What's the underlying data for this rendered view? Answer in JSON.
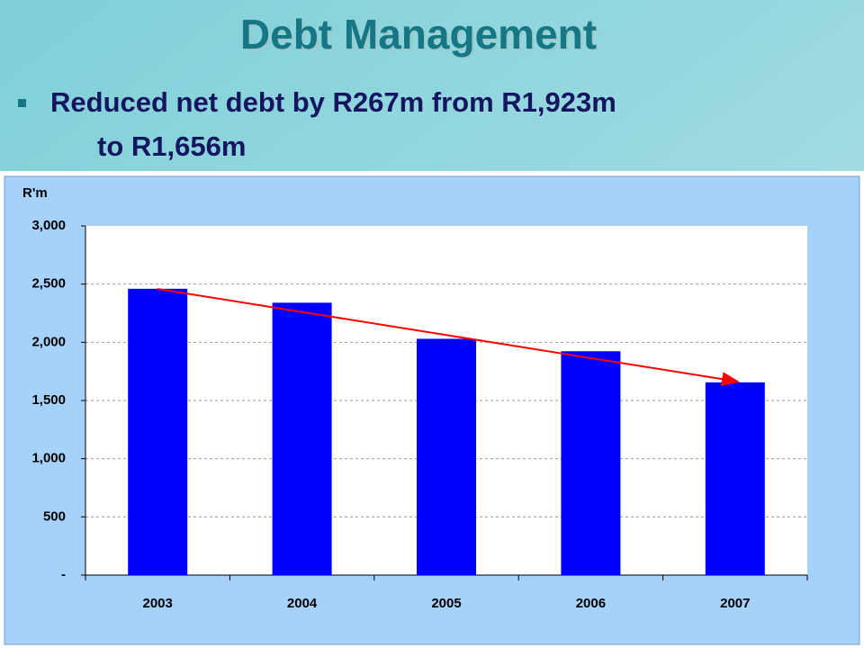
{
  "chart_data": {
    "type": "bar",
    "title": "Debt Management",
    "subtitle": [
      "Reduced net debt by R267m from R1,923m",
      "to  R1,656m"
    ],
    "y_label": "R'm",
    "categories": [
      "2003",
      "2004",
      "2005",
      "2006",
      "2007"
    ],
    "values": [
      2460,
      2340,
      2030,
      1923,
      1656
    ],
    "color": "#0000ff",
    "ylim": [
      0,
      3000
    ],
    "yticks": [
      {
        "value": 0,
        "label": "-"
      },
      500,
      {
        "value": 1000,
        "label": "1,000"
      },
      {
        "value": 1500,
        "label": "1,500"
      },
      {
        "value": 2000,
        "label": "2,000"
      },
      {
        "value": 2500,
        "label": "2,500"
      },
      {
        "value": 3000,
        "label": "3,000"
      }
    ],
    "grid": true
  }
}
